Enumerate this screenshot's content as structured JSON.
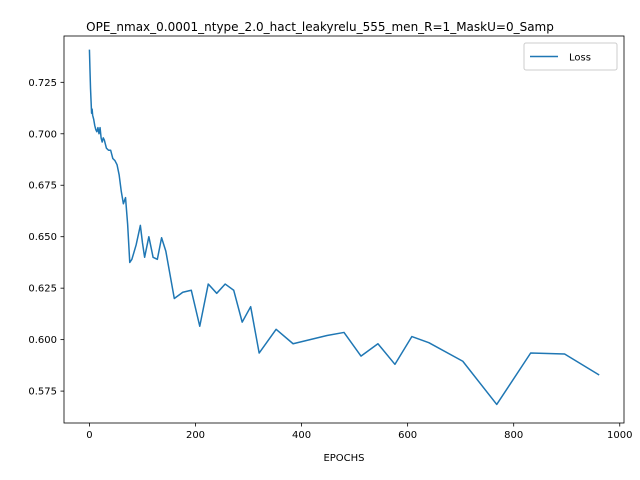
{
  "chart_data": {
    "type": "line",
    "title": "OPE_nmax_0.0001_ntype_2.0_hact_leakyrelu_555_men_R=1_MaskU=0_Samp",
    "xlabel": "EPOCHS",
    "ylabel": "",
    "xlim": [
      -48,
      1008
    ],
    "ylim": [
      0.5595,
      0.7475
    ],
    "xticks": [
      0,
      200,
      400,
      600,
      800,
      1000
    ],
    "yticks": [
      0.575,
      0.6,
      0.625,
      0.65,
      0.675,
      0.7,
      0.725
    ],
    "xtick_labels": [
      "0",
      "200",
      "400",
      "600",
      "800",
      "1000"
    ],
    "ytick_labels": [
      "0.575",
      "0.600",
      "0.625",
      "0.650",
      "0.675",
      "0.700",
      "0.725"
    ],
    "grid": false,
    "legend_position": "top-right",
    "colors": {
      "series": "#1f77b4",
      "axes": "#000000",
      "background": "#ffffff"
    },
    "series": [
      {
        "name": "Loss",
        "x": [
          0,
          1,
          2,
          3,
          4,
          5,
          6,
          7,
          8,
          10,
          12,
          14,
          16,
          18,
          20,
          22,
          24,
          26,
          28,
          32,
          36,
          40,
          44,
          48,
          52,
          56,
          60,
          64,
          68,
          72,
          76,
          80,
          88,
          96,
          100,
          104,
          112,
          120,
          128,
          136,
          144,
          160,
          176,
          192,
          208,
          224,
          240,
          256,
          272,
          288,
          304,
          320,
          352,
          384,
          416,
          448,
          480,
          512,
          544,
          576,
          608,
          640,
          704,
          768,
          832,
          896,
          960
        ],
        "values": [
          0.7405,
          0.731,
          0.722,
          0.716,
          0.71,
          0.712,
          0.709,
          0.708,
          0.707,
          0.704,
          0.702,
          0.701,
          0.703,
          0.7,
          0.703,
          0.698,
          0.696,
          0.698,
          0.697,
          0.693,
          0.692,
          0.692,
          0.688,
          0.687,
          0.685,
          0.68,
          0.672,
          0.666,
          0.669,
          0.656,
          0.6375,
          0.639,
          0.646,
          0.6555,
          0.647,
          0.64,
          0.65,
          0.64,
          0.639,
          0.6495,
          0.643,
          0.62,
          0.623,
          0.624,
          0.6065,
          0.627,
          0.6225,
          0.627,
          0.624,
          0.6085,
          0.616,
          0.5935,
          0.605,
          0.598,
          0.6,
          0.602,
          0.6035,
          0.592,
          0.598,
          0.588,
          0.6015,
          0.5985,
          0.5895,
          0.5685,
          0.5935,
          0.593,
          0.583
        ]
      }
    ]
  }
}
